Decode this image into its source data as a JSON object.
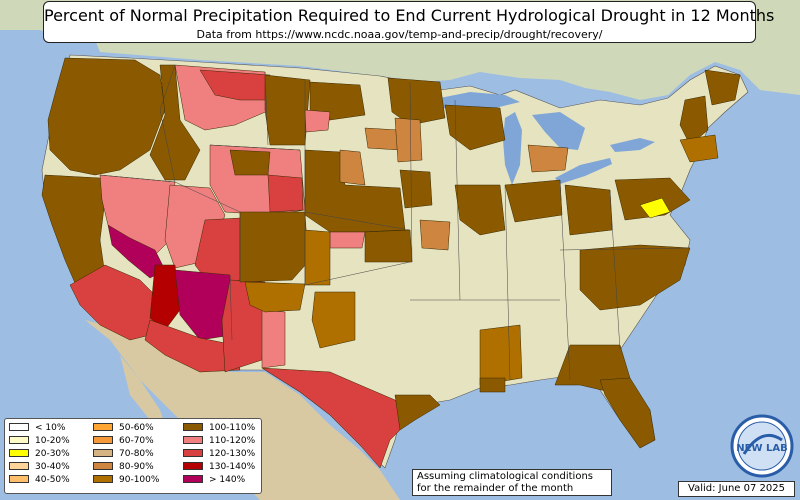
{
  "header": {
    "title": "Percent of Normal Precipitation Required to End Current Hydrological Drought in 12 Months",
    "subtitle": "Data from https://www.ncdc.noaa.gov/temp-and-precip/drought/recovery/"
  },
  "legend": {
    "items": [
      {
        "label": "< 10%",
        "color": "#ffffff"
      },
      {
        "label": "10-20%",
        "color": "#fffbc8"
      },
      {
        "label": "20-30%",
        "color": "#ffff00"
      },
      {
        "label": "30-40%",
        "color": "#ffd49a"
      },
      {
        "label": "40-50%",
        "color": "#ffbf6a"
      },
      {
        "label": "50-60%",
        "color": "#ffa533"
      },
      {
        "label": "60-70%",
        "color": "#f59a3a"
      },
      {
        "label": "70-80%",
        "color": "#d5b382"
      },
      {
        "label": "80-90%",
        "color": "#cd853f"
      },
      {
        "label": "90-100%",
        "color": "#b07000"
      },
      {
        "label": "100-110%",
        "color": "#8b5a00"
      },
      {
        "label": "110-120%",
        "color": "#f08080"
      },
      {
        "label": "120-130%",
        "color": "#d94040"
      },
      {
        "label": "130-140%",
        "color": "#b40000"
      },
      {
        "label": "> 140%",
        "color": "#b0005a"
      }
    ]
  },
  "note": {
    "line1": "Assuming climatological conditions",
    "line2": "for the remainder of the month"
  },
  "valid": "Valid: June 07 2025",
  "logo": {
    "text": "NEW LAB",
    "icon": "nws-lab-logo-icon"
  },
  "colors": {
    "ocean": "#9dbde3",
    "land": "#e6e3c0",
    "mexico": "#d8c9a3",
    "canada": "#cfd8b8",
    "lake": "#7fa6d6"
  }
}
